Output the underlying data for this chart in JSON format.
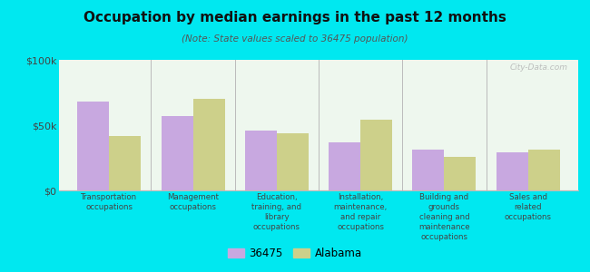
{
  "title": "Occupation by median earnings in the past 12 months",
  "subtitle": "(Note: State values scaled to 36475 population)",
  "categories": [
    "Transportation\noccupations",
    "Management\noccupations",
    "Education,\ntraining, and\nlibrary\noccupations",
    "Installation,\nmaintenance,\nand repair\noccupations",
    "Building and\ngrounds\ncleaning and\nmaintenance\noccupations",
    "Sales and\nrelated\noccupations"
  ],
  "values_36475": [
    68000,
    57000,
    46000,
    37000,
    31000,
    29000
  ],
  "values_alabama": [
    42000,
    70000,
    44000,
    54000,
    26000,
    31000
  ],
  "color_36475": "#c8a8e0",
  "color_alabama": "#cdd08a",
  "background_chart": "#eef7ee",
  "background_fig": "#00e8f0",
  "ylim": [
    0,
    100000
  ],
  "yticks": [
    0,
    50000,
    100000
  ],
  "ytick_labels": [
    "$0",
    "$50k",
    "$100k"
  ],
  "legend_label_36475": "36475",
  "legend_label_alabama": "Alabama",
  "watermark": "City-Data.com"
}
